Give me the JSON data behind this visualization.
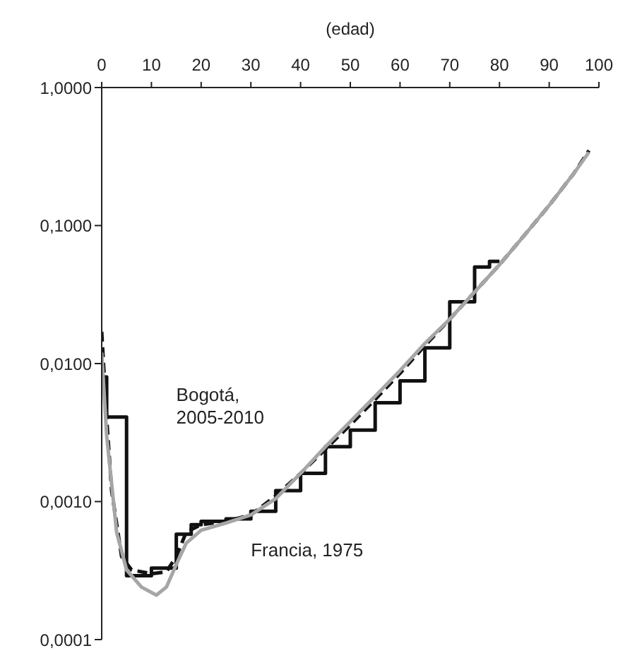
{
  "chart_data": {
    "type": "line",
    "xlabel": "(edad)",
    "xlim": [
      0,
      100
    ],
    "xticks": [
      0,
      10,
      20,
      30,
      40,
      50,
      60,
      70,
      80,
      90,
      100
    ],
    "ylim": [
      0.0001,
      1
    ],
    "yticks": [
      {
        "value": 0.0001,
        "label": "0,0001"
      },
      {
        "value": 0.001,
        "label": "0,0010"
      },
      {
        "value": 0.01,
        "label": "0,0100"
      },
      {
        "value": 0.1,
        "label": "0,1000"
      },
      {
        "value": 1,
        "label": "1,0000"
      }
    ],
    "log": "y",
    "grid": false,
    "legend": false,
    "marker": "none",
    "series": [
      {
        "name": "Bogotá, 2005-2010",
        "type": "step",
        "color": "#111111",
        "line_style": "solid",
        "x": [
          0,
          1,
          5,
          10,
          15,
          18,
          20,
          25,
          30,
          35,
          40,
          45,
          50,
          55,
          60,
          65,
          70,
          75,
          78,
          80
        ],
        "values": [
          0.008,
          0.0041,
          0.00029,
          0.00033,
          0.00058,
          0.00068,
          0.00072,
          0.00075,
          0.00085,
          0.0012,
          0.0016,
          0.0025,
          0.0033,
          0.0052,
          0.0075,
          0.013,
          0.028,
          0.05,
          0.055,
          0.055
        ]
      },
      {
        "type": "line",
        "color": "#111111",
        "line_style": "dashed",
        "x": [
          0,
          1,
          2,
          4,
          6,
          10,
          13,
          15,
          17,
          20,
          25,
          30,
          35,
          40,
          45,
          50,
          55,
          60,
          65,
          70,
          75,
          80,
          85,
          90,
          95,
          98
        ],
        "values": [
          0.017,
          0.004,
          0.0012,
          0.0004,
          0.00032,
          0.0003,
          0.00031,
          0.0004,
          0.0006,
          0.00068,
          0.00072,
          0.0008,
          0.0011,
          0.0016,
          0.0024,
          0.0036,
          0.0055,
          0.0085,
          0.0135,
          0.021,
          0.033,
          0.052,
          0.085,
          0.14,
          0.24,
          0.35
        ]
      },
      {
        "name": "Francia, 1975",
        "type": "line",
        "color": "#a6a6a6",
        "line_style": "solid",
        "x": [
          0,
          1,
          3,
          5,
          8,
          11,
          13,
          15,
          17,
          20,
          25,
          30,
          35,
          40,
          45,
          50,
          55,
          60,
          65,
          70,
          75,
          80,
          85,
          90,
          95,
          98
        ],
        "values": [
          0.012,
          0.003,
          0.0006,
          0.00032,
          0.00024,
          0.00021,
          0.00024,
          0.00035,
          0.0005,
          0.00062,
          0.0007,
          0.0008,
          0.00105,
          0.0016,
          0.0025,
          0.0038,
          0.0058,
          0.0089,
          0.014,
          0.021,
          0.033,
          0.052,
          0.085,
          0.14,
          0.24,
          0.34
        ]
      }
    ]
  }
}
